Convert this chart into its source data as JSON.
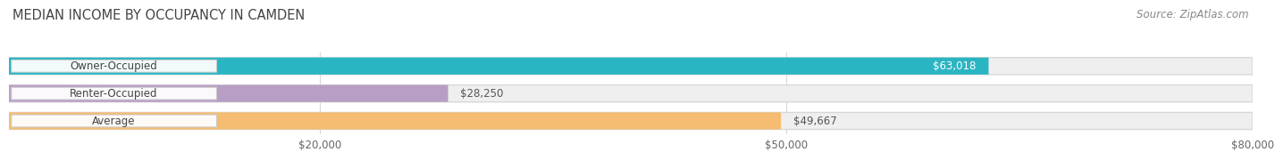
{
  "title": "MEDIAN INCOME BY OCCUPANCY IN CAMDEN",
  "source": "Source: ZipAtlas.com",
  "categories": [
    "Owner-Occupied",
    "Renter-Occupied",
    "Average"
  ],
  "values": [
    63018,
    28250,
    49667
  ],
  "labels": [
    "$63,018",
    "$28,250",
    "$49,667"
  ],
  "bar_colors": [
    "#2ab5c3",
    "#b89ec4",
    "#f5bc72"
  ],
  "bg_color": "#efefef",
  "bg_edge_color": "#d8d8d8",
  "xlim": [
    0,
    80000
  ],
  "xticks": [
    20000,
    50000,
    80000
  ],
  "xtick_labels": [
    "$20,000",
    "$50,000",
    "$80,000"
  ],
  "title_fontsize": 10.5,
  "source_fontsize": 8.5,
  "value_fontsize": 8.5,
  "cat_fontsize": 8.5,
  "background_color": "#ffffff",
  "grid_color": "#d8d8d8",
  "bar_height": 0.62,
  "label_inside_threshold": 55000,
  "label_inside_color": "#ffffff",
  "label_outside_color": "#555555"
}
